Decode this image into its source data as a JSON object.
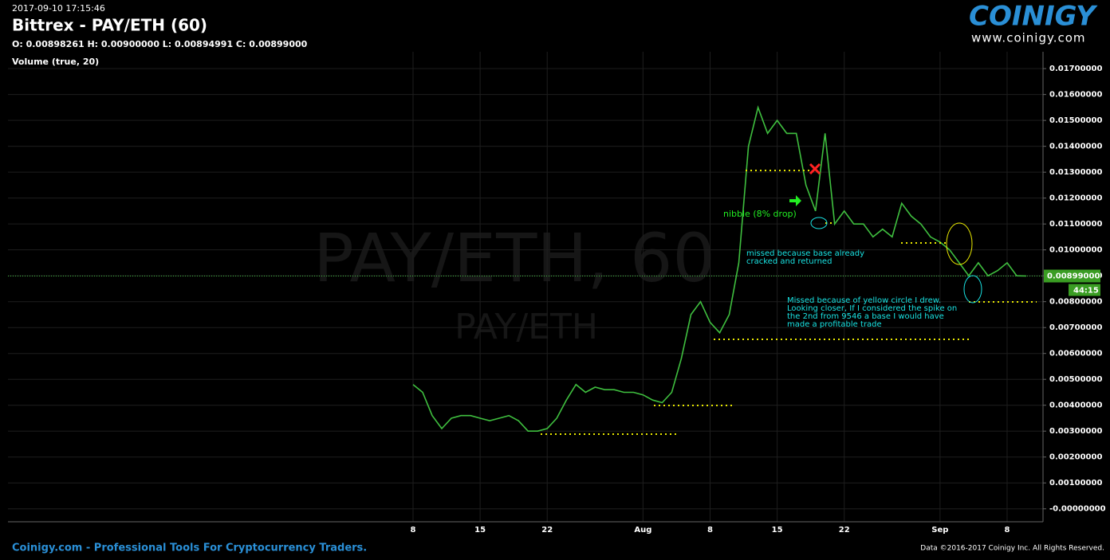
{
  "header": {
    "timestamp": "2017-09-10 17:15:46",
    "title": "Bittrex - PAY/ETH (60)",
    "ohlc": "O: 0.00898261 H: 0.00900000 L: 0.00894991 C: 0.00899000",
    "indicator": "Volume (true, 20)"
  },
  "logo": {
    "name": "COINIGY",
    "url": "www.coinigy.com"
  },
  "watermark": {
    "main": "PAY/ETH, 60",
    "sub": "PAY/ETH"
  },
  "footer": {
    "left": "Coinigy.com - Professional Tools For Cryptocurrency Traders.",
    "right": "Data ©2016-2017 Coinigy Inc. All Rights Reserved."
  },
  "annotations": {
    "nibble": "nibble (8% drop)",
    "missed_base": [
      "missed because base already",
      "cracked and returned"
    ],
    "missed_circle": [
      "Missed because of yellow circle I drew.",
      "Looking closer, If I considered the spike on",
      "the 2nd from 9546 a base I would have",
      "made a profitable trade"
    ]
  },
  "countdown": "44:15",
  "chart_data": {
    "type": "line",
    "color": "#3fbf3f",
    "grid": true,
    "categories": [
      "8",
      null,
      null,
      null,
      null,
      null,
      null,
      "15",
      null,
      null,
      null,
      null,
      null,
      null,
      "22",
      null,
      null,
      null,
      null,
      null,
      null,
      null,
      null,
      null,
      "Aug",
      null,
      null,
      null,
      null,
      null,
      null,
      "8",
      null,
      null,
      null,
      null,
      null,
      null,
      "15",
      null,
      null,
      null,
      null,
      null,
      null,
      "22",
      null,
      null,
      null,
      null,
      null,
      null,
      null,
      null,
      null,
      "Sep",
      null,
      null,
      null,
      null,
      null,
      null,
      "8",
      null,
      null
    ],
    "values": [
      0.0048,
      0.0045,
      0.0036,
      0.0031,
      0.0035,
      0.0036,
      0.0036,
      0.0035,
      0.0034,
      0.0035,
      0.0036,
      0.0034,
      0.003,
      0.003,
      0.0031,
      0.0035,
      0.0042,
      0.0048,
      0.0045,
      0.0047,
      0.0046,
      0.0046,
      0.0045,
      0.0045,
      0.0044,
      0.0042,
      0.0041,
      0.0045,
      0.0058,
      0.0075,
      0.008,
      0.0072,
      0.0068,
      0.0075,
      0.0095,
      0.014,
      0.0155,
      0.0145,
      0.015,
      0.0145,
      0.0145,
      0.0125,
      0.0115,
      0.0145,
      0.011,
      0.0115,
      0.011,
      0.011,
      0.0105,
      0.0108,
      0.0105,
      0.0118,
      0.0113,
      0.011,
      0.0105,
      0.0103,
      0.01,
      0.0095,
      0.009,
      0.0095,
      0.009,
      0.0092,
      0.0095,
      0.009,
      0.00899
    ],
    "ylim": [
      -0.0005,
      0.01765
    ],
    "yticks": [
      {
        "value": 0,
        "label": "-0.00000000"
      },
      {
        "value": 0.001,
        "label": "0.00100000"
      },
      {
        "value": 0.002,
        "label": "0.00200000"
      },
      {
        "value": 0.003,
        "label": "0.00300000"
      },
      {
        "value": 0.004,
        "label": "0.00400000"
      },
      {
        "value": 0.005,
        "label": "0.00500000"
      },
      {
        "value": 0.006,
        "label": "0.00600000"
      },
      {
        "value": 0.007,
        "label": "0.00700000"
      },
      {
        "value": 0.008,
        "label": "0.00800000"
      },
      {
        "value": 0.009,
        "label": "0.00900000"
      },
      {
        "value": 0.01,
        "label": "0.01000000"
      },
      {
        "value": 0.011,
        "label": "0.01100000"
      },
      {
        "value": 0.012,
        "label": "0.01200000"
      },
      {
        "value": 0.013,
        "label": "0.01300000"
      },
      {
        "value": 0.014,
        "label": "0.01400000"
      },
      {
        "value": 0.015,
        "label": "0.01500000"
      },
      {
        "value": 0.016,
        "label": "0.01600000"
      },
      {
        "value": 0.017,
        "label": "0.01700000"
      }
    ],
    "last_price": {
      "value": 0.00899,
      "label": "0.00899000"
    }
  }
}
